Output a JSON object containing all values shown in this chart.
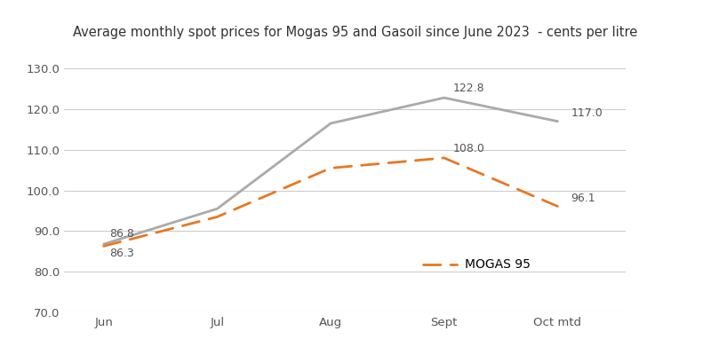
{
  "title": "Average monthly spot prices for Mogas 95 and Gasoil since June 2023  - cents per litre",
  "x_labels": [
    "Jun",
    "Jul",
    "Aug",
    "Sept",
    "Oct mtd"
  ],
  "gasoil_values": [
    86.8,
    95.5,
    116.5,
    122.8,
    117.0
  ],
  "mogas95_values": [
    86.3,
    93.5,
    105.5,
    108.0,
    96.1
  ],
  "gasoil_color": "#aaaaaa",
  "mogas95_color": "#E87722",
  "ylim": [
    70.0,
    132.0
  ],
  "yticks": [
    70.0,
    80.0,
    90.0,
    100.0,
    110.0,
    120.0,
    130.0
  ],
  "gasoil_label_indices": [
    0,
    3,
    4
  ],
  "gasoil_labels": [
    86.8,
    122.8,
    117.0
  ],
  "mogas95_label_indices": [
    0,
    3,
    4
  ],
  "mogas95_labels": [
    86.3,
    108.0,
    96.1
  ],
  "legend_label": "MOGAS 95",
  "background_color": "#ffffff",
  "title_fontsize": 10.5,
  "label_fontsize": 9,
  "tick_fontsize": 9.5,
  "legend_fontsize": 10
}
